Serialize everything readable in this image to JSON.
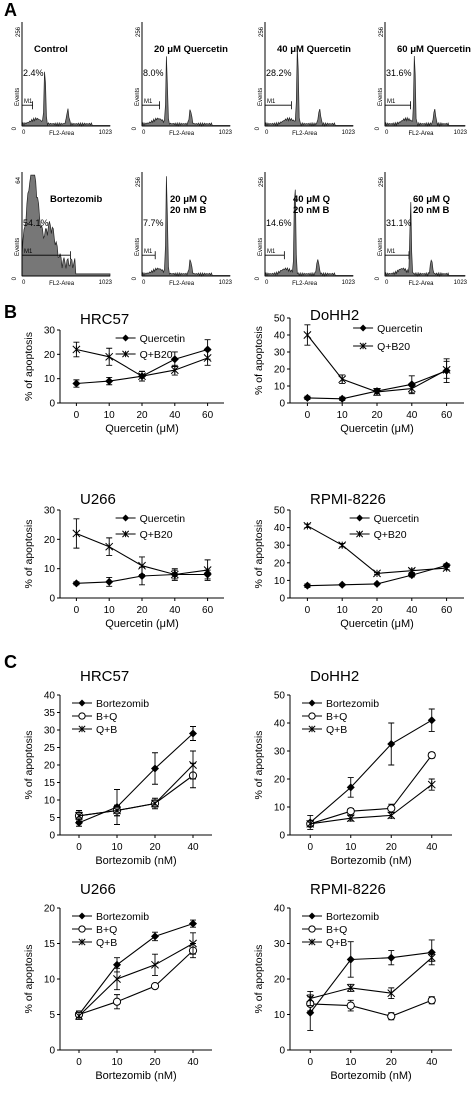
{
  "panel_letters": [
    "A",
    "B",
    "C"
  ],
  "flow_common": {
    "y_axis_label": "Events",
    "x_axis_label": "FL2-Area",
    "gate_label": "M1",
    "x_max_tick": "1023"
  },
  "flow_panels": [
    {
      "lines": [
        "Control"
      ],
      "gate_percent": "2.4%",
      "y_max_tick": "256"
    },
    {
      "lines": [
        "20 μM Quercetin"
      ],
      "gate_percent": "8.0%",
      "y_max_tick": "256"
    },
    {
      "lines": [
        "40 μM Quercetin"
      ],
      "gate_percent": "28.2%",
      "y_max_tick": "256"
    },
    {
      "lines": [
        "60 μM Quercetin"
      ],
      "gate_percent": "31.6%",
      "y_max_tick": "256"
    },
    {
      "lines": [
        "Bortezomib"
      ],
      "gate_percent": "54.1%",
      "y_max_tick": "64"
    },
    {
      "lines": [
        "20 μM Q",
        "20 nM B"
      ],
      "gate_percent": "7.7%",
      "y_max_tick": "256"
    },
    {
      "lines": [
        "40 μM Q",
        "20 nM B"
      ],
      "gate_percent": "14.6%",
      "y_max_tick": "256"
    },
    {
      "lines": [
        "60 μM Q",
        "20 nM B"
      ],
      "gate_percent": "31.1%",
      "y_max_tick": "256"
    }
  ],
  "chart_data": [
    {
      "panel": "B",
      "type": "line",
      "title": "HRC57",
      "xlabel": "Quercetin (μM)",
      "ylabel": "% of apoptosis",
      "categories": [
        "0",
        "10",
        "20",
        "40",
        "60"
      ],
      "ylim": [
        0,
        30
      ],
      "yticks": [
        0,
        10,
        20,
        30
      ],
      "legend_position": "top-center",
      "series": [
        {
          "name": "Quercetin",
          "marker": "diamond",
          "values": [
            8,
            9,
            11,
            18,
            22
          ],
          "errors": [
            1.5,
            1.5,
            2,
            3,
            4
          ]
        },
        {
          "name": "Q+B20",
          "marker": "star",
          "values": [
            22,
            19,
            11,
            13.5,
            18.5
          ],
          "errors": [
            3,
            3.5,
            2,
            2,
            3
          ]
        }
      ]
    },
    {
      "panel": "B",
      "type": "line",
      "title": "DoHH2",
      "xlabel": "Quercetin (μM)",
      "ylabel": "% of apoptosis",
      "categories": [
        "0",
        "10",
        "20",
        "40",
        "60"
      ],
      "ylim": [
        0,
        50
      ],
      "yticks": [
        0,
        10,
        20,
        30,
        40,
        50
      ],
      "legend_position": "top-right",
      "series": [
        {
          "name": "Quercetin",
          "marker": "diamond",
          "values": [
            3,
            2.5,
            7,
            11,
            19
          ],
          "errors": [
            1,
            1,
            1.5,
            5,
            7
          ]
        },
        {
          "name": "Q+B20",
          "marker": "star",
          "values": [
            40,
            14,
            6.5,
            8.5,
            19.5
          ],
          "errors": [
            6,
            2.5,
            2,
            3,
            5
          ]
        }
      ]
    },
    {
      "panel": "B",
      "type": "line",
      "title": "U266",
      "xlabel": "Quercetin (μM)",
      "ylabel": "% of apoptosis",
      "categories": [
        "0",
        "10",
        "20",
        "40",
        "60"
      ],
      "ylim": [
        0,
        30
      ],
      "yticks": [
        0,
        10,
        20,
        30
      ],
      "legend_position": "top-right",
      "series": [
        {
          "name": "Quercetin",
          "marker": "diamond",
          "values": [
            5,
            5.5,
            7.5,
            8,
            8
          ],
          "errors": [
            0.5,
            1.5,
            3,
            1.5,
            1.5
          ]
        },
        {
          "name": "Q+B20",
          "marker": "star",
          "values": [
            22,
            17.5,
            11,
            8,
            9.5
          ],
          "errors": [
            5,
            3,
            3,
            2,
            3.5
          ]
        }
      ]
    },
    {
      "panel": "B",
      "type": "line",
      "title": "RPMI-8226",
      "xlabel": "Quercetin (μM)",
      "ylabel": "% of apoptosis",
      "categories": [
        "0",
        "10",
        "20",
        "40",
        "60"
      ],
      "ylim": [
        0,
        50
      ],
      "yticks": [
        0,
        10,
        20,
        30,
        40,
        50
      ],
      "legend_position": "top-right",
      "series": [
        {
          "name": "Quercetin",
          "marker": "diamond",
          "values": [
            7,
            7.5,
            8,
            13,
            18.5
          ],
          "errors": [
            1,
            0.5,
            0.5,
            1,
            1
          ]
        },
        {
          "name": "Q+B20",
          "marker": "star",
          "values": [
            41,
            30,
            14,
            15.5,
            17
          ],
          "errors": [
            1,
            1,
            0.5,
            1,
            1
          ]
        }
      ]
    },
    {
      "panel": "C",
      "type": "line",
      "title": "HRC57",
      "xlabel": "Bortezomib (nM)",
      "ylabel": "% of apoptosis",
      "categories": [
        "0",
        "10",
        "20",
        "40"
      ],
      "ylim": [
        0,
        40
      ],
      "yticks": [
        0,
        5,
        10,
        15,
        20,
        25,
        30,
        35,
        40
      ],
      "legend_position": "top-left",
      "series": [
        {
          "name": "Bortezomib",
          "marker": "diamond",
          "values": [
            3.5,
            8,
            19,
            29
          ],
          "errors": [
            1,
            5,
            4.5,
            2
          ]
        },
        {
          "name": "B+Q",
          "marker": "circle",
          "values": [
            5.5,
            7,
            9,
            17
          ],
          "errors": [
            1.5,
            1.5,
            1.5,
            3.5
          ]
        },
        {
          "name": "Q+B",
          "marker": "star",
          "values": [
            5.5,
            7,
            9,
            20
          ],
          "errors": [
            1,
            1.5,
            1,
            4
          ]
        }
      ]
    },
    {
      "panel": "C",
      "type": "line",
      "title": "DoHH2",
      "xlabel": "Bortezomib (nM)",
      "ylabel": "% of apoptosis",
      "categories": [
        "0",
        "10",
        "20",
        "40"
      ],
      "ylim": [
        0,
        50
      ],
      "yticks": [
        0,
        10,
        20,
        30,
        40,
        50
      ],
      "legend_position": "top-left",
      "series": [
        {
          "name": "Bortezomib",
          "marker": "diamond",
          "values": [
            4.5,
            17,
            32.5,
            41
          ],
          "errors": [
            2.5,
            3.5,
            7.5,
            4
          ]
        },
        {
          "name": "B+Q",
          "marker": "circle",
          "values": [
            4,
            8.5,
            9.5,
            28.5
          ],
          "errors": [
            1,
            1,
            1.5,
            1
          ]
        },
        {
          "name": "Q+B",
          "marker": "star",
          "values": [
            4,
            6,
            7,
            18
          ],
          "errors": [
            1,
            1,
            1,
            2
          ]
        }
      ]
    },
    {
      "panel": "C",
      "type": "line",
      "title": "U266",
      "xlabel": "Bortezomib (nM)",
      "ylabel": "% of apoptosis",
      "categories": [
        "0",
        "10",
        "20",
        "40"
      ],
      "ylim": [
        0,
        20
      ],
      "yticks": [
        0,
        5,
        10,
        15,
        20
      ],
      "legend_position": "top-left",
      "series": [
        {
          "name": "Bortezomib",
          "marker": "diamond",
          "values": [
            5,
            12,
            16,
            17.8
          ],
          "errors": [
            0.5,
            1,
            0.6,
            0.5
          ]
        },
        {
          "name": "B+Q",
          "marker": "circle",
          "values": [
            5,
            6.8,
            9,
            14
          ],
          "errors": [
            0.5,
            1,
            0.3,
            1
          ]
        },
        {
          "name": "Q+B",
          "marker": "star",
          "values": [
            4.8,
            10,
            12,
            15
          ],
          "errors": [
            0.5,
            1.5,
            1.5,
            1.5
          ]
        }
      ]
    },
    {
      "panel": "C",
      "type": "line",
      "title": "RPMI-8226",
      "xlabel": "Bortezomib (nM)",
      "ylabel": "% of apoptosis",
      "categories": [
        "0",
        "10",
        "20",
        "40"
      ],
      "ylim": [
        0,
        40
      ],
      "yticks": [
        0,
        10,
        20,
        30,
        40
      ],
      "legend_position": "top-left",
      "series": [
        {
          "name": "Bortezomib",
          "marker": "diamond",
          "values": [
            10.5,
            25.5,
            26,
            27.5
          ],
          "errors": [
            5,
            5,
            2,
            3.5
          ]
        },
        {
          "name": "B+Q",
          "marker": "circle",
          "values": [
            13,
            12.5,
            9.5,
            14
          ],
          "errors": [
            2,
            1.5,
            1,
            1
          ]
        },
        {
          "name": "Q+B",
          "marker": "star",
          "values": [
            14.5,
            17.5,
            16,
            26
          ],
          "errors": [
            2,
            1,
            1.5,
            1
          ]
        }
      ]
    }
  ]
}
